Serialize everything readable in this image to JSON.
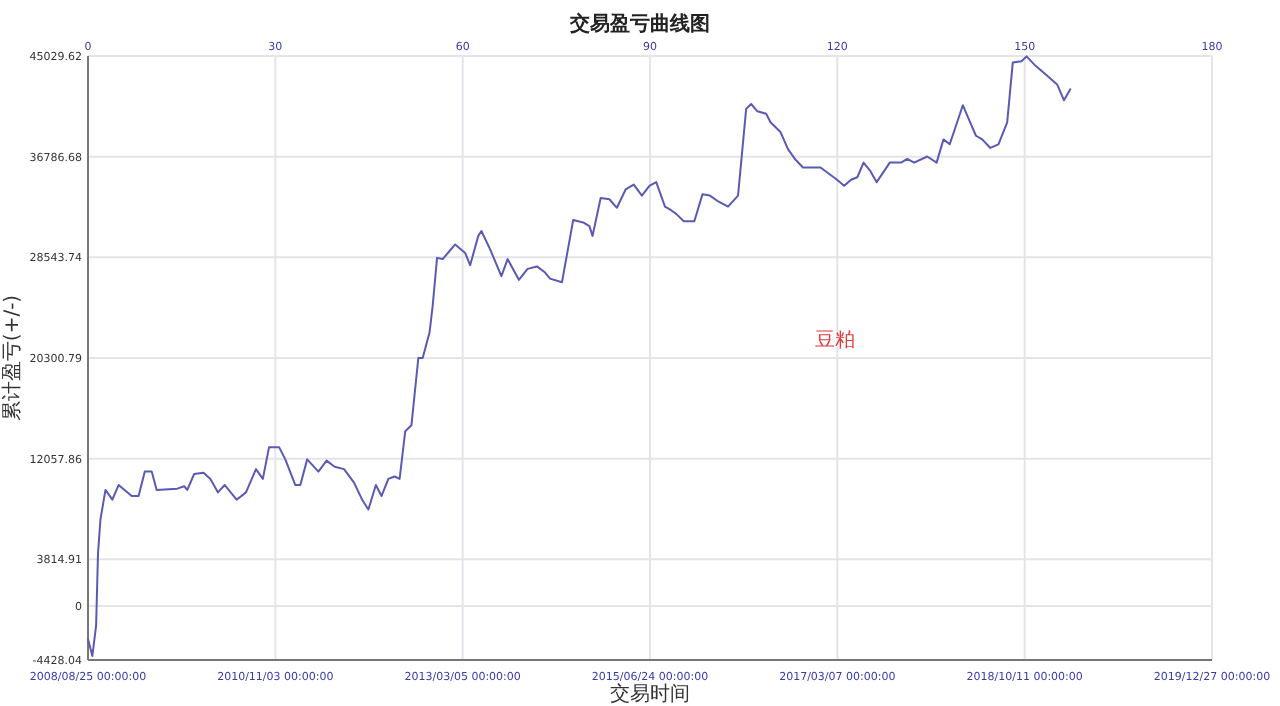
{
  "chart_data": {
    "type": "line",
    "title": "交易盈亏曲线图",
    "xlabel": "交易时间",
    "ylabel": "累计盈亏(+/-)",
    "x": [
      0,
      0.7,
      1.3,
      1.6,
      2.0,
      2.8,
      3.9,
      4.9,
      7.0,
      8.1,
      9.1,
      10.2,
      11.0,
      14.3,
      15.4,
      15.9,
      17.0,
      18.5,
      19.6,
      20.8,
      21.9,
      23.8,
      25.3,
      26.9,
      28.0,
      29.0,
      30.6,
      31.6,
      33.2,
      34.0,
      35.1,
      36.9,
      38.2,
      39.5,
      41.0,
      42.6,
      43.9,
      44.9,
      46.1,
      47.0,
      48.1,
      49.1,
      49.9,
      50.8,
      51.8,
      52.9,
      53.6,
      54.7,
      55.2,
      55.9,
      56.8,
      57.8,
      58.8,
      60.4,
      61.2,
      62.5,
      63.0,
      64.4,
      66.2,
      67.2,
      69.0,
      70.4,
      71.9,
      73.2,
      74.0,
      75.9,
      77.7,
      79.3,
      80.3,
      80.8,
      82.1,
      83.5,
      84.7,
      86.1,
      87.4,
      88.7,
      89.9,
      91.0,
      92.4,
      93.1,
      94.2,
      95.4,
      97.1,
      98.4,
      99.6,
      101.0,
      102.5,
      104.1,
      105.4,
      106.2,
      107.2,
      108.6,
      109.3,
      110.9,
      112.1,
      113.2,
      114.5,
      117.3,
      119.7,
      121.1,
      122.2,
      123.2,
      124.2,
      125.3,
      126.3,
      128.4,
      130.2,
      131.2,
      132.3,
      134.4,
      135.9,
      137.0,
      138.0,
      140.1,
      141.1,
      142.2,
      143.2,
      144.5,
      145.8,
      147.2,
      148.1,
      149.5,
      150.3,
      151.6,
      153.2,
      155.2,
      156.3,
      157.3
    ],
    "series": [
      {
        "color": "#5a5ab4",
        "values": [
          -2700,
          -4100,
          -1600,
          4300,
          7100,
          9500,
          8700,
          9900,
          9000,
          9000,
          11000,
          11000,
          9500,
          9600,
          9800,
          9500,
          10800,
          10900,
          10400,
          9300,
          9900,
          8700,
          9300,
          11200,
          10400,
          13000,
          13000,
          12000,
          9900,
          9900,
          12000,
          11000,
          11900,
          11400,
          11200,
          10100,
          8700,
          7900,
          9900,
          9000,
          10400,
          10600,
          10400,
          14300,
          14800,
          20300,
          20300,
          22400,
          24600,
          28500,
          28400,
          29000,
          29600,
          28900,
          27900,
          30300,
          30700,
          29200,
          27000,
          28400,
          26700,
          27600,
          27800,
          27300,
          26800,
          26500,
          31600,
          31400,
          31100,
          30300,
          33400,
          33300,
          32600,
          34100,
          34500,
          33600,
          34400,
          34700,
          32700,
          32500,
          32100,
          31500,
          31500,
          33700,
          33600,
          33100,
          32700,
          33600,
          40700,
          41100,
          40500,
          40300,
          39600,
          38800,
          37400,
          36600,
          35900,
          35900,
          35000,
          34400,
          34900,
          35100,
          36300,
          35600,
          34700,
          36300,
          36300,
          36600,
          36300,
          36800,
          36300,
          38200,
          37800,
          41000,
          39800,
          38500,
          38200,
          37500,
          37800,
          39600,
          44500,
          44600,
          45000,
          44300,
          43600,
          42700,
          41400,
          42300
        ]
      }
    ],
    "xlim": [
      0,
      180
    ],
    "xticks": [
      0,
      30,
      60,
      90,
      120,
      150,
      180
    ],
    "ylim": [
      -4428.04,
      45029.62
    ],
    "yticks": [
      -4428.04,
      0,
      3814.91,
      12057.86,
      20300.79,
      28543.74,
      36786.68,
      45029.62
    ],
    "grid": true,
    "annotations": [
      "豆粕",
      "2008/08/25 00:00:00",
      "2010/11/03 00:00:00",
      "2013/03/05 00:00:00",
      "2015/06/24 00:00:00",
      "2017/03/07 00:00:00",
      "2018/10/11 00:00:00",
      "2019/12/27 00:00:00"
    ]
  }
}
